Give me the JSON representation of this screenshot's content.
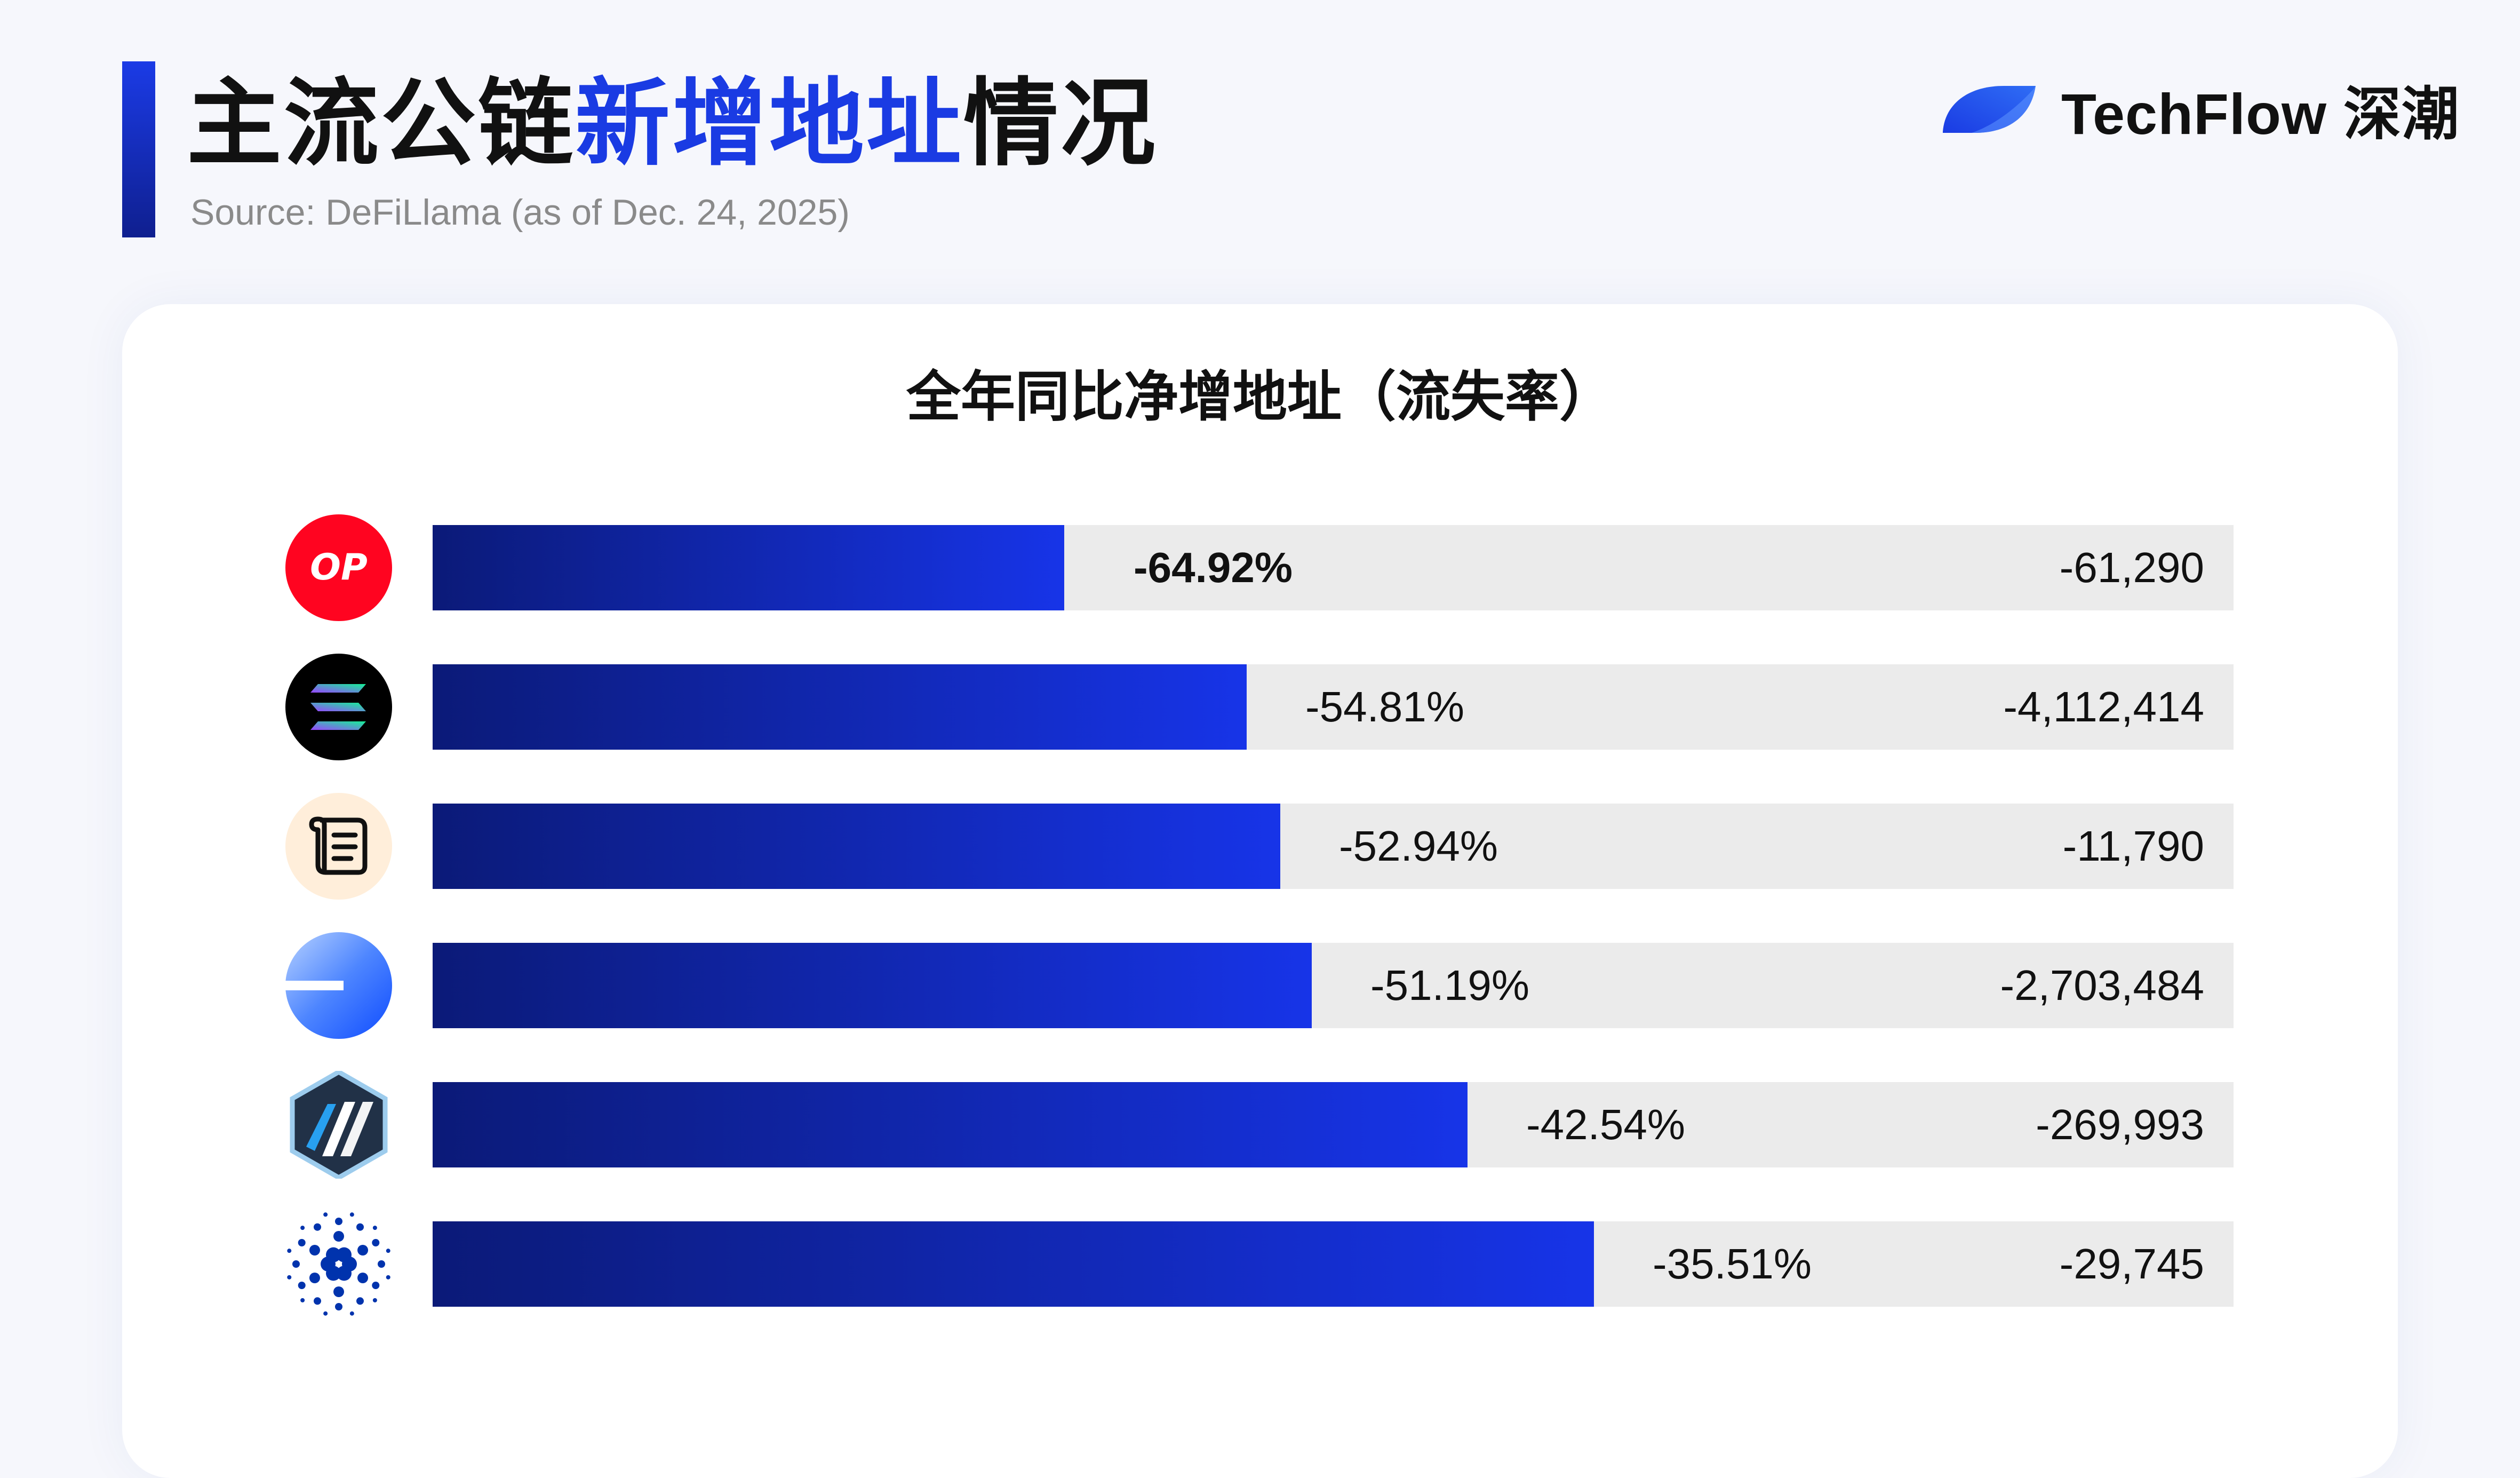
{
  "header": {
    "title_part1": "主流公链",
    "title_highlight": "新增地址",
    "title_part2": "情况",
    "source": "Source: DeFiLlama (as of Dec. 24, 2025)"
  },
  "brand": {
    "name": "TechFlow 深潮",
    "color": "#1a3be3"
  },
  "colors": {
    "bar_start": "#0b1a78",
    "bar_end": "#1734e8",
    "track": "#ebebeb",
    "accent": "#1a3be3"
  },
  "chart_data": {
    "type": "bar",
    "orientation": "horizontal",
    "title": "全年同比净增地址（流失率）",
    "xlim": [
      0,
      100
    ],
    "grid": false,
    "rows": [
      {
        "icon": "optimism-icon",
        "icon_text": "OP",
        "value": -64.92,
        "pct_label": "-64.92%",
        "count": -61290,
        "count_label": "-61,290"
      },
      {
        "icon": "solana-icon",
        "value": -54.81,
        "pct_label": "-54.81%",
        "count": -4112414,
        "count_label": "-4,112,414"
      },
      {
        "icon": "scroll-icon",
        "value": -52.94,
        "pct_label": "-52.94%",
        "count": -11790,
        "count_label": "-11,790"
      },
      {
        "icon": "base-icon",
        "value": -51.19,
        "pct_label": "-51.19%",
        "count": -2703484,
        "count_label": "-2,703,484"
      },
      {
        "icon": "arbitrum-icon",
        "value": -42.54,
        "pct_label": "-42.54%",
        "count": -269993,
        "count_label": "-269,993"
      },
      {
        "icon": "cardano-icon",
        "value": -35.51,
        "pct_label": "-35.51%",
        "count": -29745,
        "count_label": "-29,745"
      }
    ]
  }
}
